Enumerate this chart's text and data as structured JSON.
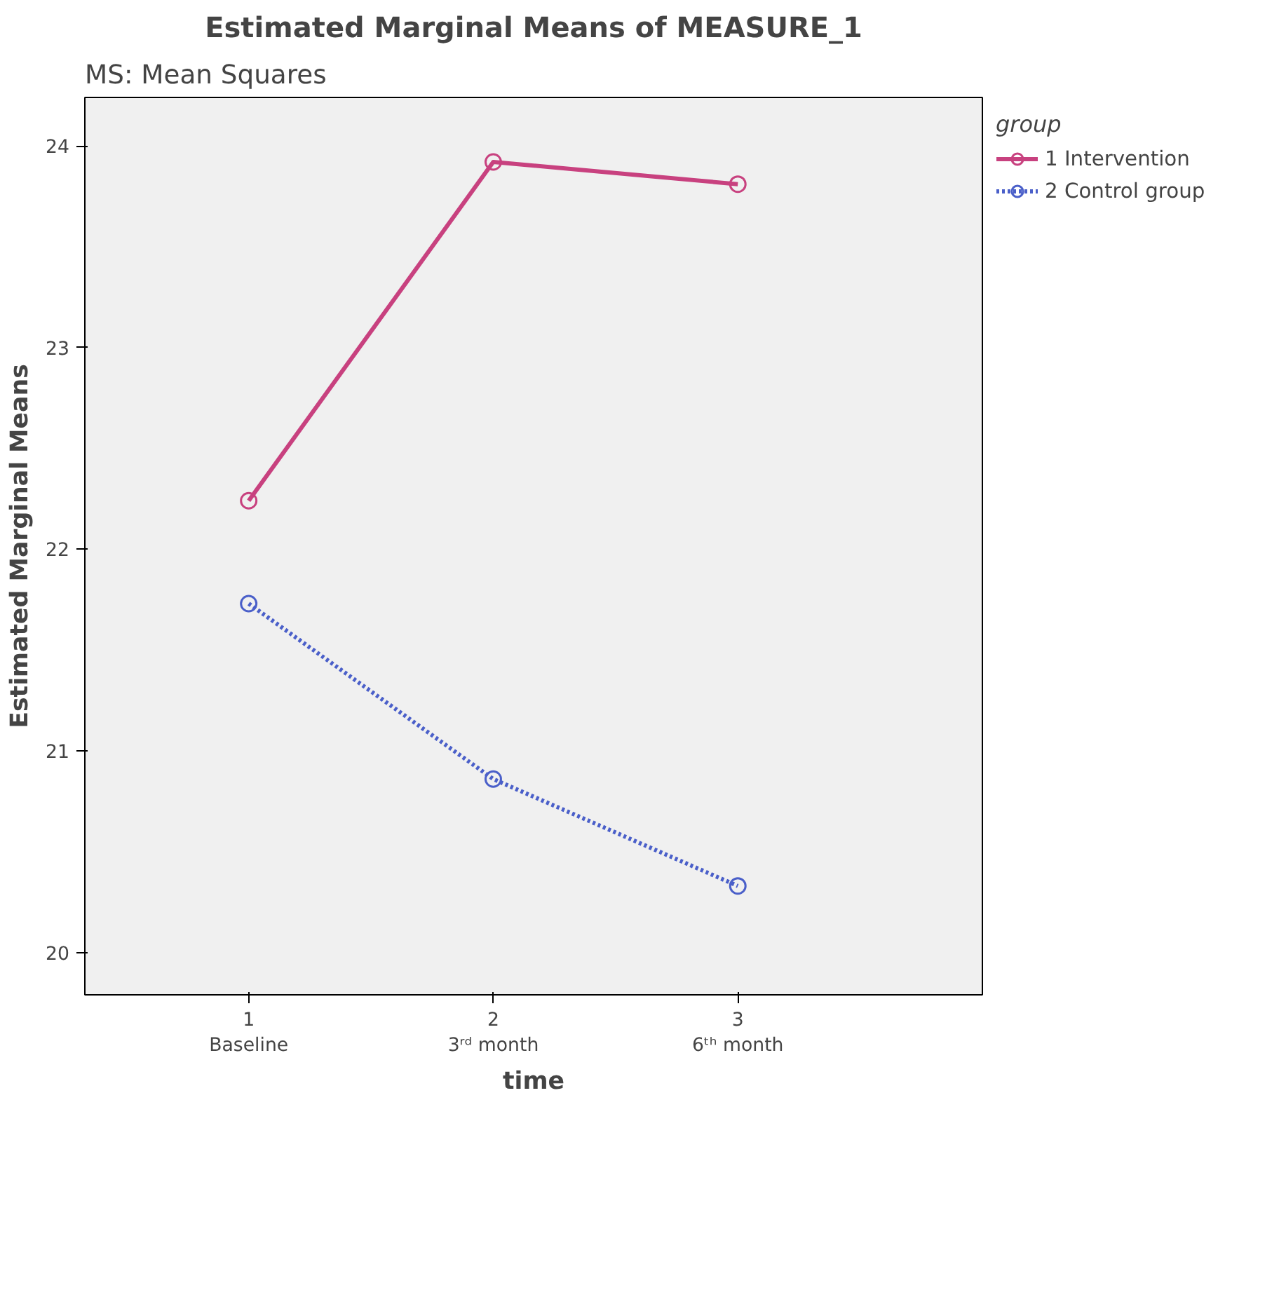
{
  "chart_data": {
    "type": "line",
    "title": "Estimated Marginal Means of MEASURE_1",
    "xlabel": "time",
    "ylabel": "Estimated Marginal Means",
    "annotations": [
      "MS: Mean Squares"
    ],
    "categories": [
      "1\nBaseline",
      "2\n3ʳᵈ month",
      "3\n6ᵗʰ month"
    ],
    "ylim": [
      19.79,
      24.24
    ],
    "yticks": [
      20,
      21,
      22,
      23,
      24
    ],
    "legend_title": "group",
    "legend": "right",
    "grid": false,
    "marker": "circle",
    "series": [
      {
        "name": "1 Intervention",
        "color": "#c8417f",
        "line_style": "solid",
        "values": [
          22.24,
          23.92,
          23.81
        ]
      },
      {
        "name": "2 Control group",
        "color": "#4a5fc9",
        "line_style": "dotted",
        "values": [
          21.73,
          20.86,
          20.33
        ]
      }
    ]
  }
}
